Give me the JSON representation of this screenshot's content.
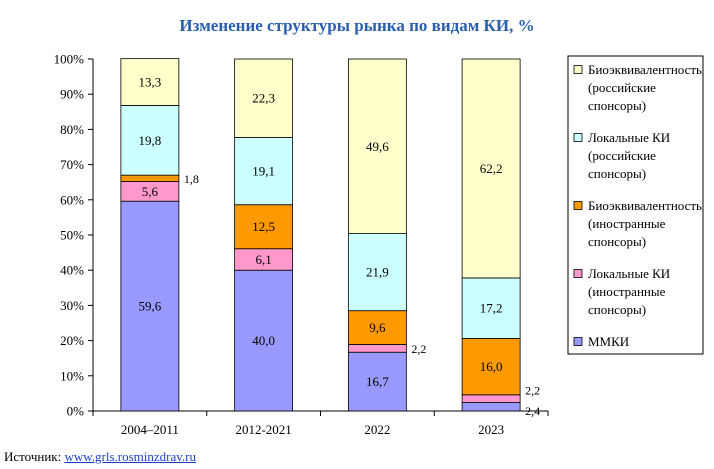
{
  "chart_data": {
    "type": "bar",
    "stacked": true,
    "title": "Изменение структуры рынка по видам КИ, %",
    "categories": [
      "2004–2011",
      "2012-2021",
      "2022",
      "2023"
    ],
    "ylim": [
      0,
      100
    ],
    "yticks": [
      "0%",
      "10%",
      "20%",
      "30%",
      "40%",
      "50%",
      "60%",
      "70%",
      "80%",
      "90%",
      "100%"
    ],
    "grid": false,
    "legend_position": "right",
    "series": [
      {
        "name": "ММКИ",
        "color": "#9999ff",
        "values": [
          59.6,
          40.0,
          16.7,
          2.4
        ],
        "labels": [
          "59,6",
          "40,0",
          "16,7",
          "2,4"
        ]
      },
      {
        "name": "Локальные КИ (иностранные спонсоры)",
        "color": "#ff99cc",
        "values": [
          5.6,
          6.1,
          2.2,
          2.2
        ],
        "labels": [
          "5,6",
          "6,1",
          "2,2",
          "2,2"
        ]
      },
      {
        "name": "Биоэквивалентность (иностранные спонсоры)",
        "color": "#ff9900",
        "values": [
          1.8,
          12.5,
          9.6,
          16.0
        ],
        "labels": [
          "1,8",
          "12,5",
          "9,6",
          "16,0"
        ]
      },
      {
        "name": "Локальные КИ (российские спонсоры)",
        "color": "#ccffff",
        "values": [
          19.8,
          19.1,
          21.9,
          17.2
        ],
        "labels": [
          "19,8",
          "19,1",
          "21,9",
          "17,2"
        ]
      },
      {
        "name": "Биоэквивалентность (российские спонсоры)",
        "color": "#ffffcc",
        "values": [
          13.3,
          22.3,
          49.6,
          62.2
        ],
        "labels": [
          "13,3",
          "22,3",
          "49,6",
          "62,2"
        ]
      }
    ],
    "legend": [
      {
        "lines": [
          "Биоэквивалентность",
          "(российские",
          "спонсоры)"
        ],
        "color": "#ffffcc"
      },
      {
        "lines": [
          "Локальные КИ",
          "(российские",
          "спонсоры)"
        ],
        "color": "#ccffff"
      },
      {
        "lines": [
          "Биоэквивалентность",
          "(иностранные",
          "спонсоры)"
        ],
        "color": "#ff9900"
      },
      {
        "lines": [
          "Локальные КИ",
          "(иностранные",
          "спонсоры)"
        ],
        "color": "#ff99cc"
      },
      {
        "lines": [
          "ММКИ"
        ],
        "color": "#9999ff"
      }
    ]
  },
  "source": {
    "label": "Источник:",
    "link": "www.grls.rosminzdrav.ru"
  }
}
